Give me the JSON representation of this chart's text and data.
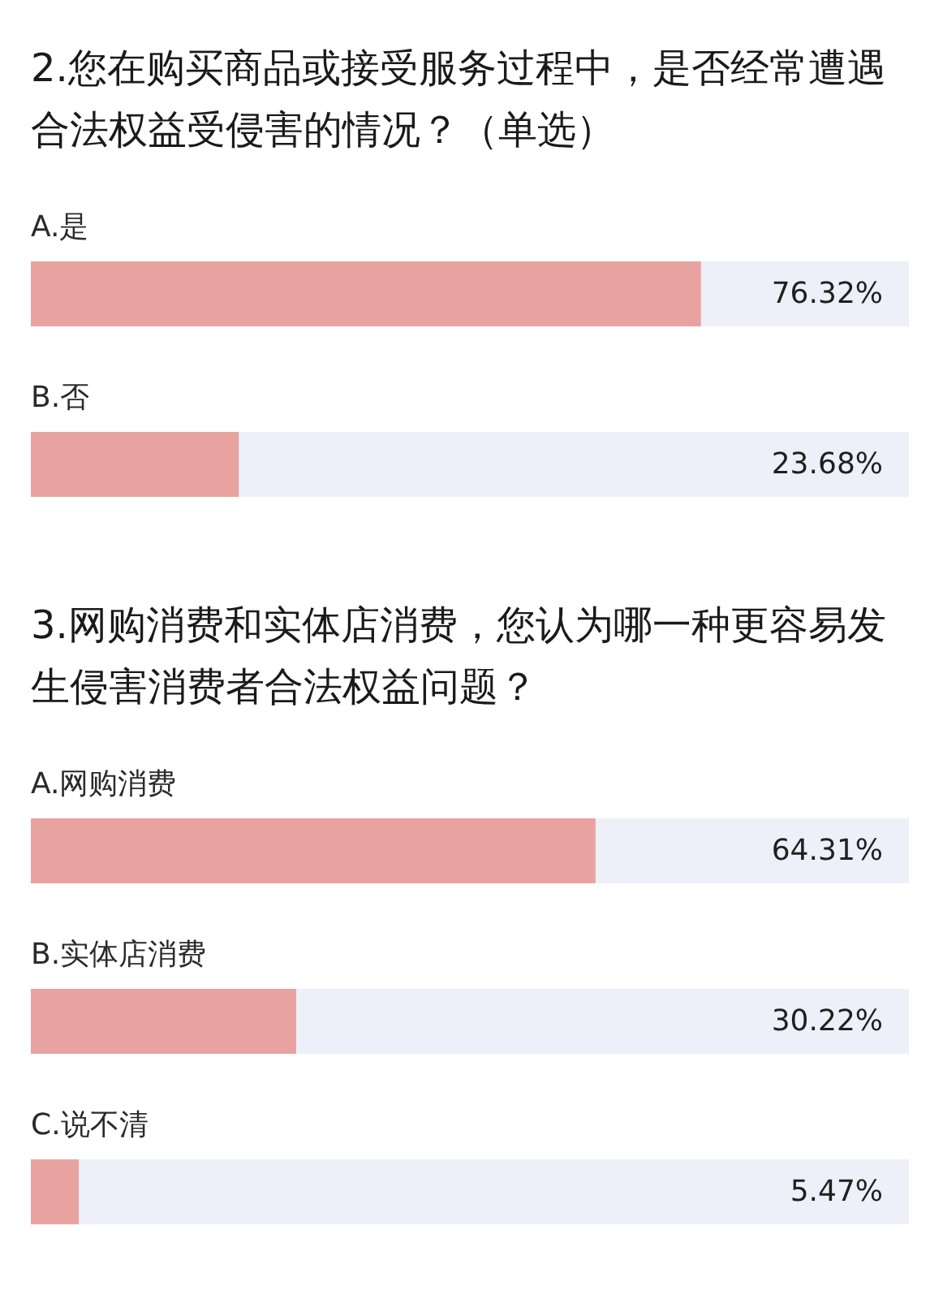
{
  "chart_data": [
    {
      "type": "bar",
      "orientation": "horizontal",
      "title": "2.您在购买商品或接受服务过程中，是否经常遭遇合法权益受侵害的情况？（单选）",
      "categories": [
        "A.是",
        "B.否"
      ],
      "values": [
        76.32,
        23.68
      ],
      "value_labels": [
        "76.32%",
        "23.68%"
      ],
      "color": "#e8a3a1",
      "xlim": [
        0,
        100
      ],
      "tick_labels": "y"
    },
    {
      "type": "bar",
      "orientation": "horizontal",
      "title": "3.网购消费和实体店消费，您认为哪一种更容易发生侵害消费者合法权益问题？",
      "categories": [
        "A.网购消费",
        "B.实体店消费",
        "C.说不清"
      ],
      "values": [
        64.31,
        30.22,
        5.47
      ],
      "value_labels": [
        "64.31%",
        "30.22%",
        "5.47%"
      ],
      "color": "#e8a3a1",
      "xlim": [
        0,
        100
      ],
      "tick_labels": "y"
    }
  ]
}
